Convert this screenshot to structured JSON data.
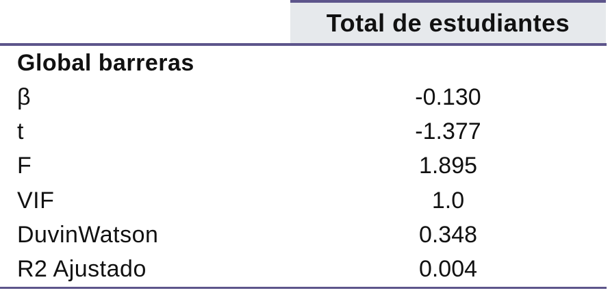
{
  "table": {
    "header": {
      "value_column_label": "Total de estudiantes"
    },
    "section_header": "Global barreras",
    "rows": [
      {
        "label": "β",
        "value": "-0.130"
      },
      {
        "label": "t",
        "value": "-1.377"
      },
      {
        "label": "F",
        "value": "1.895"
      },
      {
        "label": "VIF",
        "value": "1.0"
      },
      {
        "label": "DuvinWatson",
        "value": "0.348"
      },
      {
        "label": "R2 Ajustado",
        "value": "0.004"
      }
    ],
    "colors": {
      "accent": "#5d558b",
      "header_bg": "#e6e9ec",
      "text": "#111111",
      "background": "#ffffff"
    }
  }
}
